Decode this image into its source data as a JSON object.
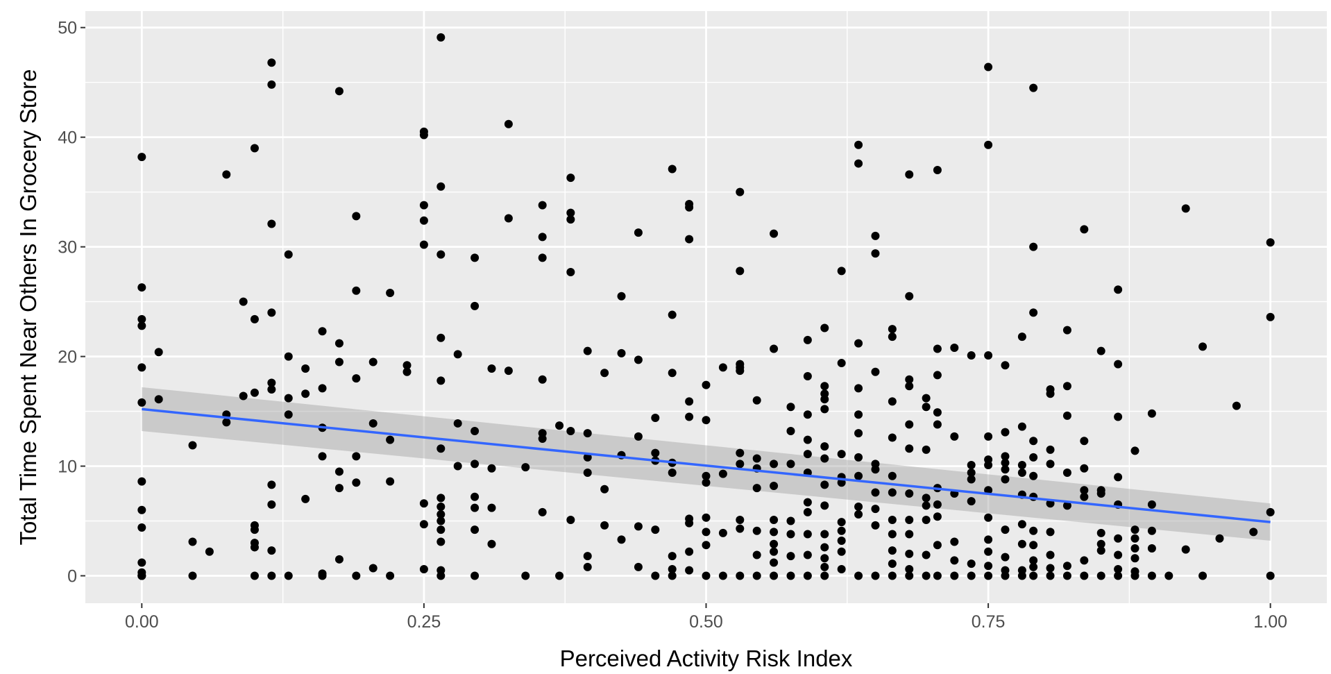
{
  "chart_data": {
    "type": "scatter",
    "title": "",
    "xlabel": "Perceived Activity Risk Index",
    "ylabel": "Total Time Spent Near Others In Grocery Store",
    "xlim": [
      -0.05,
      1.05
    ],
    "ylim": [
      -2.5,
      51.5
    ],
    "x_ticks": [
      0,
      0.25,
      0.5,
      0.75,
      1.0
    ],
    "x_tick_labels": [
      "0.00",
      "0.25",
      "0.50",
      "0.75",
      "1.00"
    ],
    "y_ticks": [
      0,
      10,
      20,
      30,
      40,
      50
    ],
    "y_tick_labels": [
      "0",
      "10",
      "20",
      "30",
      "40",
      "50"
    ],
    "grid": true,
    "legend": "none",
    "colors": {
      "panel_background": "#ebebeb",
      "grid": "#ffffff",
      "points": "#000000",
      "fit_line": "#3366ff",
      "confidence_band": "#999999"
    },
    "series": [
      {
        "kind": "points",
        "x": [
          0.0,
          0.0,
          0.0,
          0.0,
          0.0,
          0.0,
          0.0,
          0.0,
          0.0,
          0.0,
          0.0,
          0.0,
          0.0,
          0.0,
          0.015,
          0.015,
          0.045,
          0.045,
          0.045,
          0.06,
          0.075,
          0.075,
          0.075,
          0.09,
          0.09,
          0.1,
          0.1,
          0.1,
          0.1,
          0.1,
          0.1,
          0.1,
          0.1,
          0.115,
          0.115,
          0.115,
          0.115,
          0.115,
          0.115,
          0.115,
          0.115,
          0.115,
          0.115,
          0.13,
          0.13,
          0.13,
          0.13,
          0.13,
          0.145,
          0.145,
          0.145,
          0.16,
          0.16,
          0.16,
          0.16,
          0.16,
          0.16,
          0.175,
          0.175,
          0.175,
          0.175,
          0.175,
          0.175,
          0.19,
          0.19,
          0.19,
          0.19,
          0.19,
          0.19,
          0.205,
          0.205,
          0.205,
          0.22,
          0.22,
          0.22,
          0.22,
          0.235,
          0.235,
          0.25,
          0.25,
          0.25,
          0.25,
          0.25,
          0.25,
          0.25,
          0.25,
          0.265,
          0.265,
          0.265,
          0.265,
          0.265,
          0.265,
          0.265,
          0.265,
          0.265,
          0.265,
          0.265,
          0.265,
          0.265,
          0.265,
          0.28,
          0.28,
          0.28,
          0.295,
          0.295,
          0.295,
          0.295,
          0.295,
          0.295,
          0.295,
          0.295,
          0.31,
          0.31,
          0.31,
          0.31,
          0.325,
          0.325,
          0.325,
          0.34,
          0.34,
          0.355,
          0.355,
          0.355,
          0.355,
          0.355,
          0.355,
          0.355,
          0.37,
          0.37,
          0.38,
          0.38,
          0.38,
          0.38,
          0.38,
          0.38,
          0.395,
          0.395,
          0.395,
          0.395,
          0.395,
          0.395,
          0.41,
          0.41,
          0.41,
          0.425,
          0.425,
          0.425,
          0.425,
          0.44,
          0.44,
          0.44,
          0.44,
          0.44,
          0.455,
          0.455,
          0.455,
          0.455,
          0.455,
          0.47,
          0.47,
          0.47,
          0.47,
          0.47,
          0.47,
          0.47,
          0.47,
          0.485,
          0.485,
          0.485,
          0.485,
          0.485,
          0.485,
          0.485,
          0.485,
          0.485,
          0.5,
          0.5,
          0.5,
          0.5,
          0.5,
          0.5,
          0.5,
          0.5,
          0.515,
          0.515,
          0.515,
          0.515,
          0.53,
          0.53,
          0.53,
          0.53,
          0.53,
          0.53,
          0.53,
          0.53,
          0.53,
          0.53,
          0.545,
          0.545,
          0.545,
          0.545,
          0.545,
          0.545,
          0.545,
          0.56,
          0.56,
          0.56,
          0.56,
          0.56,
          0.56,
          0.56,
          0.56,
          0.56,
          0.56,
          0.575,
          0.575,
          0.575,
          0.575,
          0.575,
          0.575,
          0.575,
          0.59,
          0.59,
          0.59,
          0.59,
          0.59,
          0.59,
          0.59,
          0.59,
          0.59,
          0.59,
          0.59,
          0.605,
          0.605,
          0.605,
          0.605,
          0.605,
          0.605,
          0.605,
          0.605,
          0.605,
          0.605,
          0.605,
          0.605,
          0.605,
          0.605,
          0.62,
          0.62,
          0.62,
          0.62,
          0.62,
          0.62,
          0.62,
          0.62,
          0.62,
          0.62,
          0.635,
          0.635,
          0.635,
          0.635,
          0.635,
          0.635,
          0.635,
          0.635,
          0.635,
          0.635,
          0.635,
          0.65,
          0.65,
          0.65,
          0.65,
          0.65,
          0.65,
          0.65,
          0.65,
          0.65,
          0.665,
          0.665,
          0.665,
          0.665,
          0.665,
          0.665,
          0.665,
          0.665,
          0.665,
          0.665,
          0.665,
          0.68,
          0.68,
          0.68,
          0.68,
          0.68,
          0.68,
          0.68,
          0.68,
          0.68,
          0.68,
          0.68,
          0.68,
          0.695,
          0.695,
          0.695,
          0.695,
          0.695,
          0.695,
          0.695,
          0.695,
          0.705,
          0.705,
          0.705,
          0.705,
          0.705,
          0.705,
          0.705,
          0.705,
          0.705,
          0.705,
          0.72,
          0.72,
          0.72,
          0.72,
          0.72,
          0.72,
          0.735,
          0.735,
          0.735,
          0.735,
          0.735,
          0.735,
          0.735,
          0.75,
          0.75,
          0.75,
          0.75,
          0.75,
          0.75,
          0.75,
          0.75,
          0.75,
          0.75,
          0.75,
          0.75,
          0.765,
          0.765,
          0.765,
          0.765,
          0.765,
          0.765,
          0.765,
          0.765,
          0.765,
          0.765,
          0.78,
          0.78,
          0.78,
          0.78,
          0.78,
          0.78,
          0.78,
          0.78,
          0.78,
          0.79,
          0.79,
          0.79,
          0.79,
          0.79,
          0.79,
          0.79,
          0.79,
          0.79,
          0.79,
          0.79,
          0.79,
          0.805,
          0.805,
          0.805,
          0.805,
          0.805,
          0.805,
          0.805,
          0.805,
          0.805,
          0.82,
          0.82,
          0.82,
          0.82,
          0.82,
          0.82,
          0.82,
          0.835,
          0.835,
          0.835,
          0.835,
          0.835,
          0.835,
          0.835,
          0.85,
          0.85,
          0.85,
          0.85,
          0.85,
          0.85,
          0.85,
          0.865,
          0.865,
          0.865,
          0.865,
          0.865,
          0.865,
          0.865,
          0.865,
          0.865,
          0.88,
          0.88,
          0.88,
          0.88,
          0.88,
          0.88,
          0.88,
          0.895,
          0.895,
          0.895,
          0.895,
          0.895,
          0.91,
          0.925,
          0.925,
          0.94,
          0.94,
          0.955,
          0.97,
          0.985,
          1.0,
          1.0,
          1.0,
          1.0
        ],
        "y": [
          38.2,
          26.3,
          23.4,
          22.8,
          19.0,
          15.8,
          8.6,
          6.0,
          4.4,
          1.2,
          0.3,
          0.0,
          0.0,
          0.0,
          20.4,
          16.1,
          11.9,
          3.1,
          0.0,
          2.2,
          36.6,
          14.7,
          14.0,
          25.0,
          16.4,
          39.0,
          23.4,
          16.7,
          4.6,
          4.2,
          3.0,
          2.6,
          0.0,
          46.8,
          44.8,
          32.1,
          24.0,
          17.6,
          17.0,
          8.3,
          6.5,
          2.3,
          0.0,
          29.3,
          20.0,
          16.2,
          14.7,
          0.0,
          18.9,
          16.6,
          7.0,
          22.3,
          17.1,
          13.5,
          10.9,
          0.2,
          0.0,
          44.2,
          21.2,
          19.5,
          9.5,
          8.0,
          1.5,
          32.8,
          26.0,
          18.0,
          10.9,
          8.5,
          0.0,
          19.5,
          13.9,
          0.7,
          25.8,
          12.4,
          8.6,
          0.0,
          19.2,
          18.6,
          40.5,
          40.2,
          33.8,
          32.4,
          30.2,
          6.6,
          4.7,
          0.6,
          49.1,
          35.5,
          29.3,
          21.7,
          17.8,
          11.6,
          7.1,
          6.3,
          5.6,
          5.0,
          4.2,
          3.1,
          0.5,
          0.0,
          20.2,
          13.9,
          10.0,
          29.0,
          24.6,
          13.2,
          10.2,
          7.2,
          6.2,
          4.2,
          0.0,
          18.9,
          9.8,
          6.2,
          2.9,
          41.2,
          32.6,
          18.7,
          9.9,
          0.0,
          33.8,
          30.9,
          29.0,
          17.9,
          13.0,
          12.5,
          5.8,
          13.7,
          0.0,
          36.3,
          33.1,
          32.5,
          27.7,
          13.2,
          5.1,
          20.5,
          13.0,
          10.8,
          9.4,
          1.8,
          0.8,
          18.5,
          7.9,
          4.6,
          25.5,
          20.3,
          11.0,
          3.3,
          31.3,
          19.7,
          12.7,
          4.5,
          0.8,
          14.4,
          11.2,
          10.5,
          4.2,
          0.0,
          37.1,
          23.8,
          18.5,
          10.3,
          9.4,
          1.8,
          0.6,
          0.0,
          33.9,
          33.6,
          30.7,
          15.9,
          14.5,
          5.2,
          4.8,
          2.2,
          0.5,
          17.4,
          14.2,
          9.1,
          8.5,
          5.3,
          4.0,
          2.8,
          0.0,
          19.0,
          9.3,
          3.9,
          0.0,
          35.0,
          27.8,
          19.3,
          19.0,
          18.7,
          11.2,
          10.2,
          5.1,
          4.3,
          0.0,
          16.0,
          10.7,
          9.8,
          8.0,
          4.1,
          1.9,
          0.0,
          31.2,
          20.7,
          10.2,
          8.2,
          5.1,
          4.0,
          2.9,
          2.2,
          1.2,
          0.0,
          15.4,
          13.2,
          10.2,
          5.0,
          3.8,
          1.8,
          0.0,
          21.5,
          18.2,
          14.7,
          12.4,
          11.1,
          9.4,
          6.7,
          5.8,
          3.8,
          1.9,
          0.0,
          22.6,
          17.3,
          16.6,
          16.1,
          15.2,
          11.8,
          10.7,
          8.3,
          6.4,
          3.8,
          2.6,
          1.6,
          0.8,
          0.0,
          27.8,
          19.4,
          11.1,
          9.0,
          8.5,
          4.9,
          4.1,
          3.2,
          2.2,
          0.6,
          39.3,
          37.6,
          21.2,
          17.1,
          14.7,
          13.0,
          10.8,
          9.1,
          6.3,
          5.6,
          0.0,
          31.0,
          29.4,
          18.6,
          10.2,
          9.7,
          7.6,
          6.1,
          4.6,
          0.0,
          22.5,
          21.8,
          15.9,
          12.6,
          9.1,
          7.6,
          5.1,
          3.8,
          2.3,
          1.1,
          0.0,
          36.6,
          25.5,
          17.9,
          17.3,
          13.8,
          11.6,
          7.5,
          5.1,
          3.8,
          2.0,
          0.6,
          0.0,
          16.2,
          15.4,
          11.5,
          7.1,
          6.4,
          5.1,
          1.9,
          0.0,
          37.0,
          20.7,
          18.3,
          14.9,
          13.8,
          8.0,
          6.5,
          5.4,
          2.8,
          0.0,
          20.8,
          12.7,
          7.5,
          3.1,
          1.4,
          0.0,
          20.1,
          10.1,
          9.4,
          8.8,
          6.8,
          1.1,
          0.0,
          46.4,
          39.3,
          20.1,
          12.7,
          10.6,
          10.1,
          7.8,
          5.3,
          3.3,
          2.2,
          0.9,
          0.0,
          19.2,
          13.1,
          10.9,
          10.3,
          9.7,
          8.8,
          4.2,
          1.7,
          0.5,
          0.0,
          21.8,
          13.6,
          10.1,
          9.4,
          7.4,
          4.7,
          2.9,
          0.5,
          0.0,
          44.5,
          30.0,
          24.0,
          12.3,
          10.8,
          9.1,
          7.2,
          4.1,
          2.8,
          1.4,
          0.8,
          0.0,
          17.0,
          16.6,
          11.5,
          10.2,
          6.6,
          4.0,
          1.9,
          0.7,
          0.0,
          22.4,
          17.3,
          14.6,
          9.4,
          6.4,
          0.9,
          0.0,
          31.6,
          12.3,
          9.8,
          7.8,
          7.2,
          1.4,
          0.0,
          20.5,
          7.8,
          7.5,
          3.9,
          2.9,
          2.3,
          0.0,
          26.1,
          19.3,
          14.5,
          9.0,
          6.5,
          3.4,
          1.9,
          0.6,
          0.0,
          11.4,
          4.2,
          3.4,
          2.5,
          1.6,
          0.4,
          0.0,
          14.8,
          6.5,
          4.1,
          2.5,
          0.0,
          0.0,
          33.5,
          2.4,
          20.9,
          0.0,
          3.4,
          15.5,
          4.0,
          30.4,
          23.6,
          5.8,
          0.0
        ]
      },
      {
        "kind": "lm_fit",
        "x": [
          0.0,
          1.0
        ],
        "y": [
          15.2,
          4.9
        ],
        "ci_lower": [
          13.2,
          3.2
        ],
        "ci_upper": [
          17.2,
          6.6
        ]
      }
    ]
  }
}
